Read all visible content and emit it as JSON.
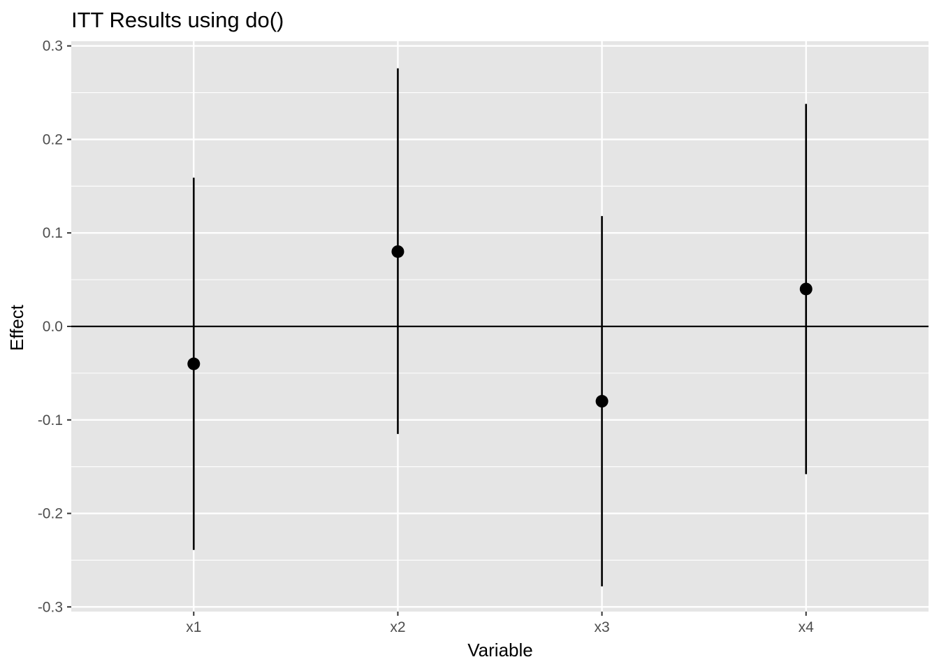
{
  "chart_data": {
    "type": "scatter",
    "title": "ITT Results using do()",
    "xlabel": "Variable",
    "ylabel": "Effect",
    "categories": [
      "x1",
      "x2",
      "x3",
      "x4"
    ],
    "series": [
      {
        "values": [
          -0.04,
          0.08,
          -0.08,
          0.04
        ],
        "lower": [
          -0.239,
          -0.115,
          -0.278,
          -0.158
        ],
        "upper": [
          0.159,
          0.276,
          0.118,
          0.238
        ]
      }
    ],
    "yticks": [
      "-0.3",
      "-0.2",
      "-0.1",
      "0.0",
      "0.1",
      "0.2",
      "0.3"
    ],
    "ylim": [
      -0.305,
      0.305
    ],
    "reference_line_y": 0,
    "grid": true,
    "colors": {
      "panel_background": "#e5e5e5",
      "grid_line": "#ffffff",
      "point": "#000000",
      "error_bar": "#000000",
      "reference_line": "#000000",
      "tick": "#333333",
      "tick_label": "#4d4d4d"
    }
  }
}
